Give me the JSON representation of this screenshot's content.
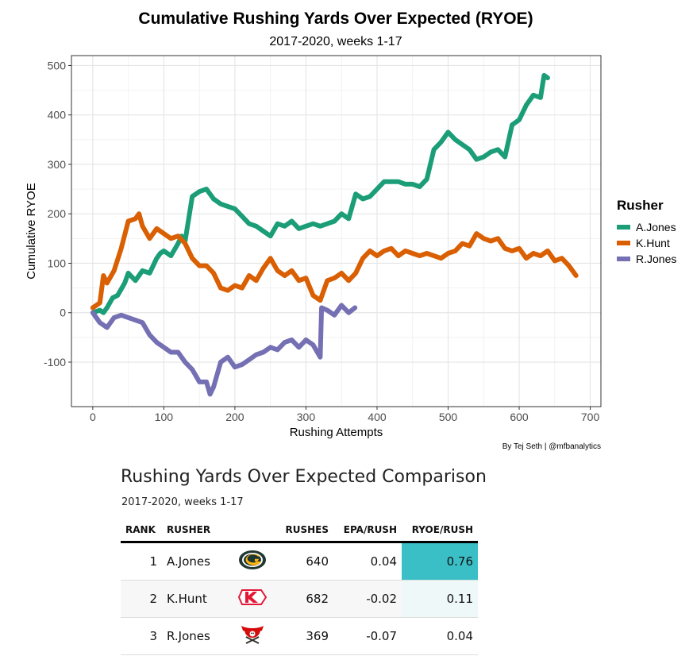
{
  "chart_data": {
    "type": "line",
    "title": "Cumulative Rushing Yards Over Expected (RYOE)",
    "subtitle": "2017-2020, weeks 1-17",
    "xlabel": "Rushing Attempts",
    "ylabel": "Cumulative RYOE",
    "xlim": [
      -30,
      715
    ],
    "ylim": [
      -190,
      520
    ],
    "xticks": [
      0,
      100,
      200,
      300,
      400,
      500,
      600,
      700
    ],
    "yticks": [
      -100,
      0,
      100,
      200,
      300,
      400,
      500
    ],
    "grid": true,
    "legend_title": "Rusher",
    "legend_position": "right",
    "caption": "By Tej Seth | @mfbanalytics",
    "series": [
      {
        "name": "A.Jones",
        "color": "#1b9e77",
        "x": [
          0,
          10,
          15,
          20,
          28,
          35,
          45,
          50,
          60,
          70,
          80,
          90,
          95,
          100,
          110,
          120,
          125,
          130,
          140,
          150,
          160,
          170,
          180,
          190,
          200,
          210,
          220,
          230,
          240,
          250,
          260,
          270,
          280,
          290,
          300,
          310,
          320,
          330,
          340,
          350,
          360,
          370,
          380,
          390,
          400,
          410,
          420,
          430,
          440,
          450,
          460,
          470,
          475,
          480,
          490,
          500,
          510,
          520,
          530,
          540,
          550,
          560,
          570,
          580,
          590,
          600,
          610,
          620,
          630,
          635,
          640
        ],
        "y": [
          0,
          5,
          0,
          10,
          30,
          35,
          60,
          80,
          65,
          85,
          80,
          110,
          120,
          125,
          115,
          140,
          155,
          145,
          235,
          245,
          250,
          230,
          220,
          215,
          210,
          195,
          180,
          175,
          165,
          155,
          180,
          175,
          185,
          170,
          175,
          180,
          175,
          180,
          185,
          200,
          190,
          240,
          230,
          235,
          250,
          265,
          265,
          265,
          260,
          260,
          255,
          270,
          300,
          330,
          345,
          365,
          350,
          340,
          330,
          310,
          315,
          325,
          330,
          315,
          380,
          390,
          420,
          440,
          435,
          480,
          475
        ]
      },
      {
        "name": "K.Hunt",
        "color": "#d95f02",
        "x": [
          0,
          5,
          10,
          15,
          20,
          30,
          40,
          50,
          60,
          65,
          70,
          80,
          90,
          100,
          110,
          120,
          130,
          140,
          150,
          160,
          170,
          180,
          190,
          200,
          210,
          220,
          230,
          240,
          250,
          260,
          270,
          280,
          290,
          300,
          310,
          320,
          330,
          340,
          350,
          360,
          370,
          380,
          390,
          400,
          410,
          420,
          430,
          440,
          450,
          460,
          470,
          480,
          490,
          500,
          510,
          520,
          530,
          540,
          550,
          560,
          570,
          580,
          590,
          600,
          610,
          620,
          630,
          640,
          650,
          660,
          670,
          680
        ],
        "y": [
          10,
          15,
          20,
          75,
          60,
          85,
          130,
          185,
          190,
          200,
          175,
          150,
          170,
          160,
          150,
          155,
          140,
          110,
          95,
          95,
          80,
          50,
          45,
          55,
          50,
          75,
          65,
          90,
          110,
          85,
          75,
          85,
          65,
          70,
          35,
          25,
          65,
          70,
          80,
          65,
          80,
          110,
          125,
          115,
          125,
          130,
          115,
          125,
          120,
          115,
          120,
          115,
          110,
          120,
          125,
          140,
          135,
          160,
          150,
          145,
          150,
          130,
          125,
          130,
          110,
          120,
          115,
          125,
          105,
          110,
          95,
          75
        ]
      },
      {
        "name": "R.Jones",
        "color": "#7570b3",
        "x": [
          0,
          10,
          20,
          25,
          30,
          40,
          50,
          60,
          70,
          80,
          90,
          100,
          110,
          120,
          130,
          140,
          150,
          160,
          165,
          170,
          180,
          190,
          200,
          210,
          220,
          230,
          240,
          250,
          260,
          270,
          280,
          290,
          300,
          310,
          320,
          322,
          330,
          340,
          350,
          360,
          369
        ],
        "y": [
          0,
          -20,
          -30,
          -20,
          -10,
          -5,
          -10,
          -15,
          -20,
          -45,
          -60,
          -70,
          -80,
          -80,
          -100,
          -115,
          -140,
          -140,
          -165,
          -150,
          -100,
          -90,
          -110,
          -105,
          -95,
          -85,
          -80,
          -70,
          -75,
          -60,
          -55,
          -70,
          -55,
          -65,
          -90,
          10,
          5,
          -5,
          15,
          0,
          10
        ]
      }
    ]
  },
  "table": {
    "title": "Rushing Yards Over Expected Comparison",
    "subtitle": "2017-2020, weeks 1-17",
    "columns": {
      "rank": "RANK",
      "rusher": "RUSHER",
      "rushes": "RUSHES",
      "epa": "EPA/RUSH",
      "ryoe": "RYOE/RUSH"
    },
    "rows": [
      {
        "rank": "1",
        "rusher": "A.Jones",
        "logo": "packers-logo",
        "rushes": "640",
        "epa": "0.04",
        "ryoe": "0.76",
        "ryoe_color": "#3bbfc7"
      },
      {
        "rank": "2",
        "rusher": "K.Hunt",
        "logo": "chiefs-logo",
        "rushes": "682",
        "epa": "-0.02",
        "ryoe": "0.11",
        "ryoe_color": "#eef8f8"
      },
      {
        "rank": "3",
        "rusher": "R.Jones",
        "logo": "buccaneers-logo",
        "rushes": "369",
        "epa": "-0.07",
        "ryoe": "0.04",
        "ryoe_color": "#ffffff"
      }
    ]
  }
}
